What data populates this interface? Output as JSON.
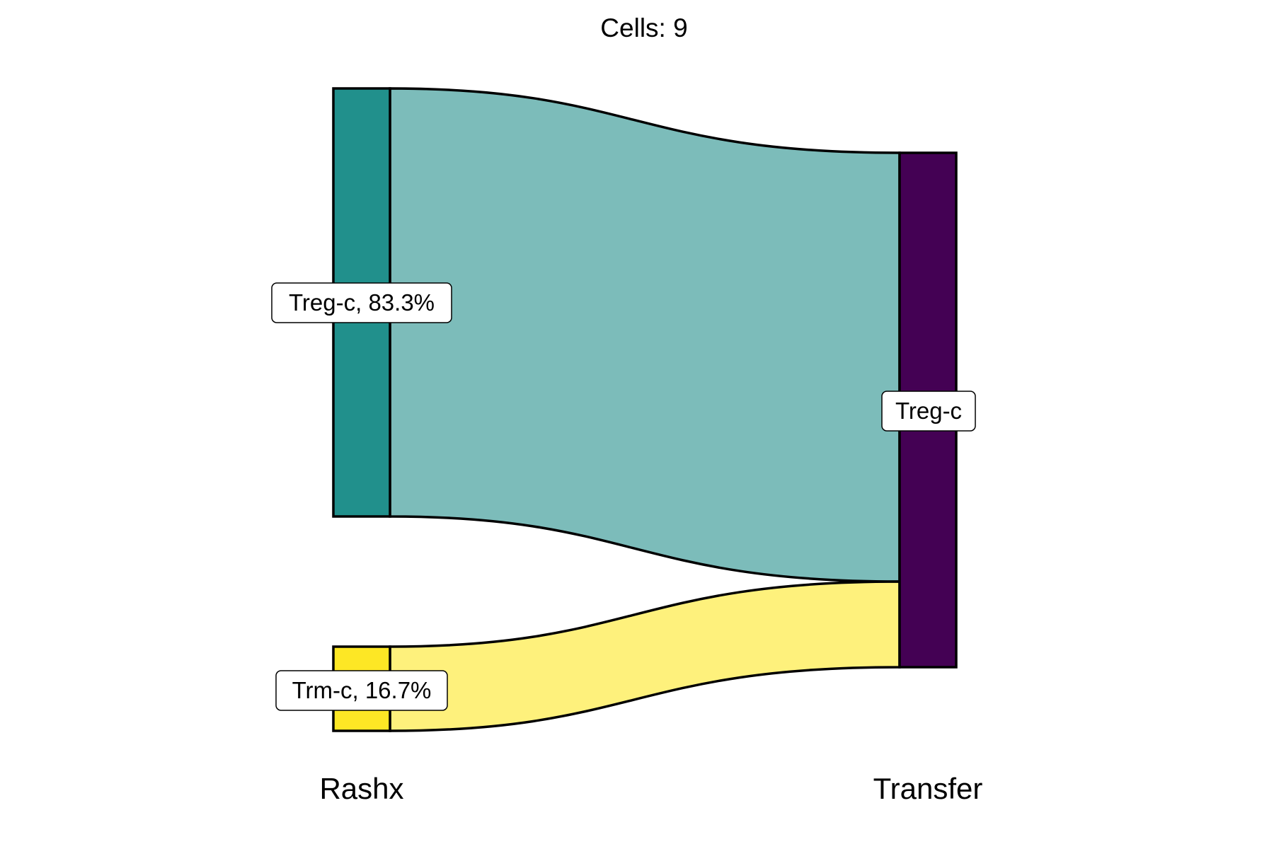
{
  "title": "Cells:  9",
  "axes": {
    "left": "Rashx",
    "right": "Transfer"
  },
  "nodes": {
    "left": [
      {
        "name": "Treg-c",
        "label": "Treg-c, 83.3%",
        "color": "#21908C",
        "fraction": 0.833
      },
      {
        "name": "Trm-c",
        "label": "Trm-c, 16.7%",
        "color": "#FDE725",
        "fraction": 0.167
      }
    ],
    "right": [
      {
        "name": "Treg-c",
        "label": "Treg-c",
        "color": "#440154",
        "fraction": 1.0
      }
    ]
  },
  "flows": [
    {
      "from": "Treg-c",
      "to": "Treg-c",
      "color": "#7CBCBA",
      "fraction": 0.833
    },
    {
      "from": "Trm-c",
      "to": "Treg-c",
      "color": "#FEF17C",
      "fraction": 0.167
    }
  ]
}
